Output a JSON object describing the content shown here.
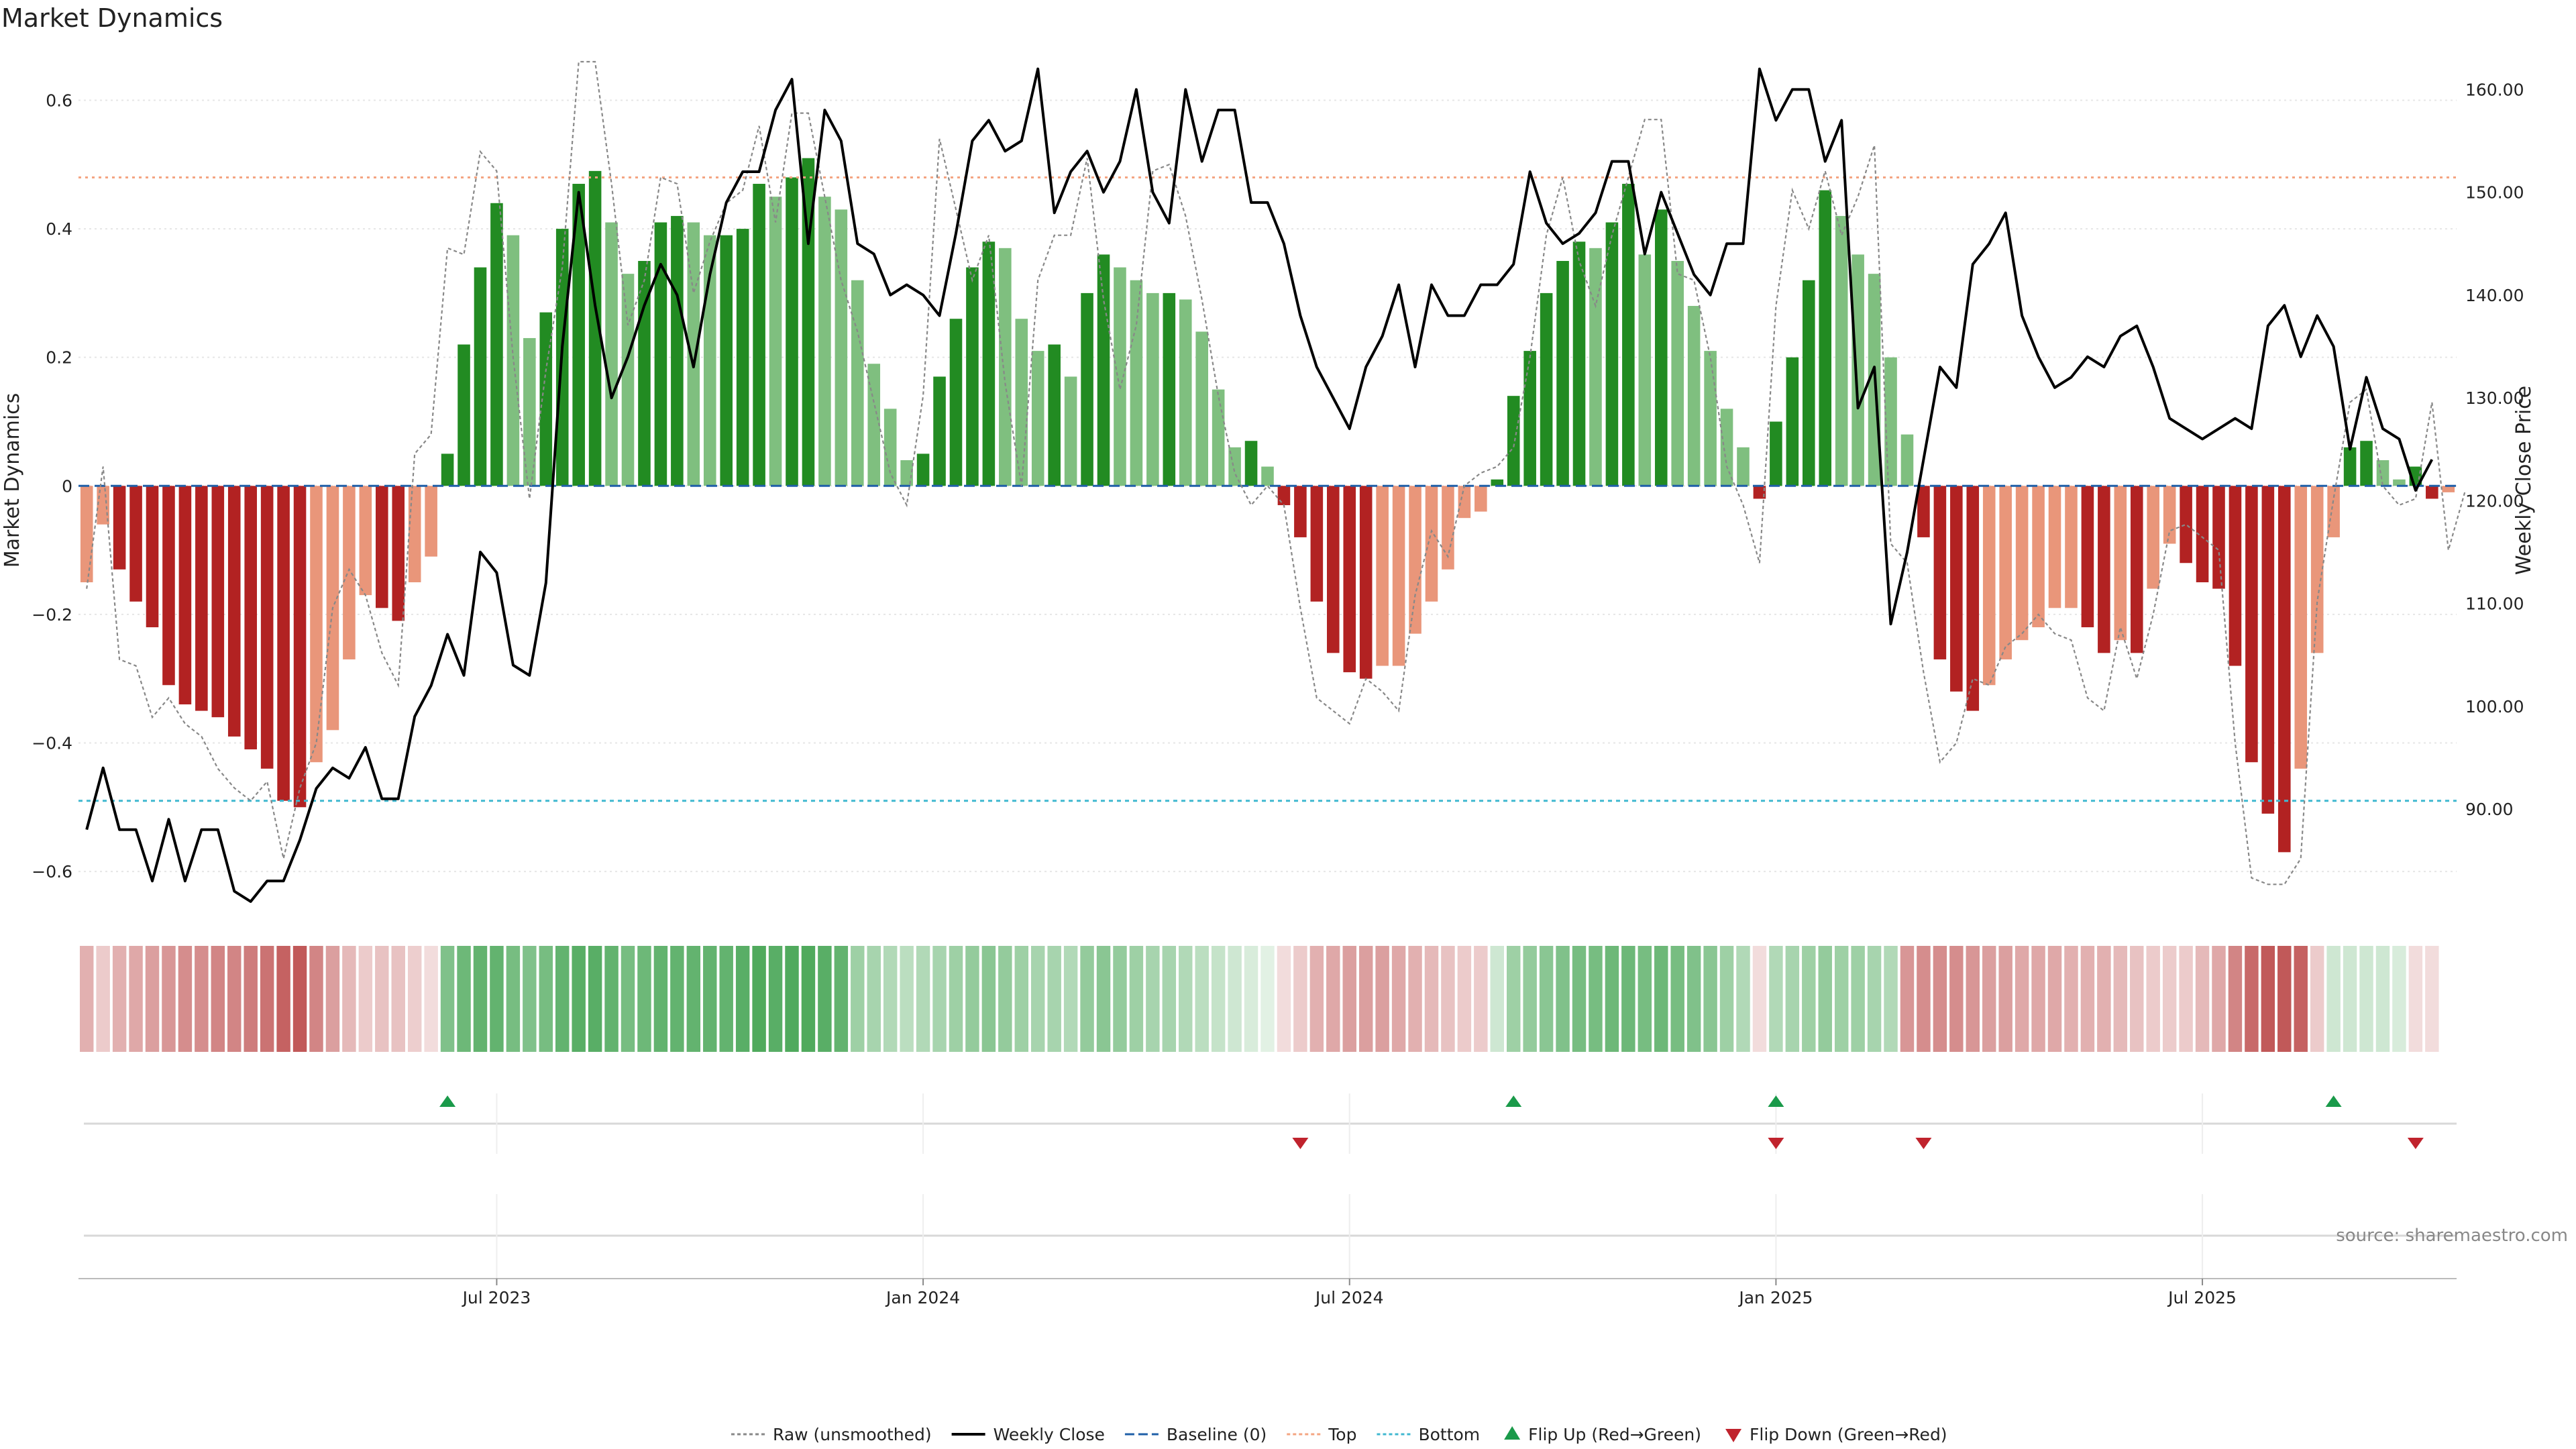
{
  "chart_data": {
    "type": "bar",
    "title": "Market Dynamics",
    "source": "source: sharemaestro.com",
    "y_left": {
      "label": "Market Dynamics",
      "range": [
        -0.65,
        0.66
      ],
      "ticks": [
        0.6,
        0.4,
        0.2,
        0,
        -0.2,
        -0.4,
        -0.6
      ],
      "tick_labels": [
        "0.6",
        "0.4",
        "0.2",
        "0",
        "−0.2",
        "−0.4",
        "−0.6"
      ]
    },
    "y_right": {
      "label": "Weekly Close Price",
      "range": [
        80.8,
        162.7
      ],
      "ticks": [
        160,
        150,
        140,
        130,
        120,
        110,
        100,
        90
      ],
      "tick_labels": [
        "160.00",
        "150.00",
        "140.00",
        "130.00",
        "120.00",
        "110.00",
        "100.00",
        "90.00"
      ]
    },
    "x_ticks": [
      {
        "label": "Jul 2023",
        "week": 25.5
      },
      {
        "label": "Jan 2024",
        "week": 51.5
      },
      {
        "label": "Jul 2024",
        "week": 77.5
      },
      {
        "label": "Jan 2025",
        "week": 103.5
      },
      {
        "label": "Jul 2025",
        "week": 129.5
      }
    ],
    "reference_lines": {
      "baseline": 0,
      "top": 0.48,
      "bottom": -0.49
    },
    "bar_colors": {
      "strong_green": "#228B22",
      "light_green": "#7FBF7F",
      "strong_red": "#B22222",
      "light_red": "#E9967A"
    },
    "line_colors": {
      "raw": "#888888",
      "close": "#000000",
      "baseline": "#1f5fa8",
      "top": "#f4a582",
      "bottom": "#40b8d0"
    },
    "smoothed": [
      -0.15,
      -0.06,
      -0.13,
      -0.18,
      -0.22,
      -0.31,
      -0.34,
      -0.35,
      -0.36,
      -0.39,
      -0.41,
      -0.44,
      -0.49,
      -0.5,
      -0.43,
      -0.38,
      -0.27,
      -0.17,
      -0.19,
      -0.21,
      -0.15,
      -0.11,
      0.05,
      0.22,
      0.34,
      0.44,
      0.39,
      0.23,
      0.27,
      0.4,
      0.47,
      0.49,
      0.41,
      0.33,
      0.35,
      0.41,
      0.42,
      0.41,
      0.39,
      0.39,
      0.4,
      0.47,
      0.45,
      0.48,
      0.51,
      0.45,
      0.43,
      0.32,
      0.19,
      0.12,
      0.04,
      0.05,
      0.17,
      0.26,
      0.34,
      0.38,
      0.37,
      0.26,
      0.21,
      0.22,
      0.17,
      0.3,
      0.36,
      0.34,
      0.32,
      0.3,
      0.3,
      0.29,
      0.24,
      0.15,
      0.06,
      0.07,
      0.03,
      -0.03,
      -0.08,
      -0.18,
      -0.26,
      -0.29,
      -0.3,
      -0.28,
      -0.28,
      -0.23,
      -0.18,
      -0.13,
      -0.05,
      -0.04,
      0.01,
      0.14,
      0.21,
      0.3,
      0.35,
      0.38,
      0.37,
      0.41,
      0.47,
      0.36,
      0.43,
      0.35,
      0.28,
      0.21,
      0.12,
      0.06,
      -0.02,
      0.1,
      0.2,
      0.32,
      0.46,
      0.42,
      0.36,
      0.33,
      0.2,
      0.08,
      -0.08,
      -0.27,
      -0.32,
      -0.35,
      -0.31,
      -0.27,
      -0.24,
      -0.22,
      -0.19,
      -0.19,
      -0.22,
      -0.26,
      -0.24,
      -0.26,
      -0.16,
      -0.09,
      -0.12,
      -0.15,
      -0.16,
      -0.28,
      -0.43,
      -0.51,
      -0.57,
      -0.44,
      -0.26,
      -0.08,
      0.06,
      0.07,
      0.04,
      0.01,
      0.03,
      -0.02,
      -0.01
    ],
    "raw": [
      -0.16,
      0.03,
      -0.27,
      -0.28,
      -0.36,
      -0.33,
      -0.37,
      -0.39,
      -0.44,
      -0.47,
      -0.49,
      -0.46,
      -0.58,
      -0.47,
      -0.4,
      -0.19,
      -0.13,
      -0.17,
      -0.26,
      -0.31,
      0.05,
      0.08,
      0.37,
      0.36,
      0.52,
      0.49,
      0.2,
      -0.02,
      0.18,
      0.34,
      0.66,
      0.66,
      0.47,
      0.25,
      0.32,
      0.48,
      0.47,
      0.3,
      0.38,
      0.44,
      0.46,
      0.56,
      0.41,
      0.58,
      0.58,
      0.45,
      0.32,
      0.24,
      0.13,
      0.02,
      -0.03,
      0.14,
      0.54,
      0.43,
      0.32,
      0.39,
      0.16,
      0.0,
      0.32,
      0.39,
      0.39,
      0.51,
      0.29,
      0.15,
      0.25,
      0.49,
      0.5,
      0.42,
      0.29,
      0.14,
      0.02,
      -0.03,
      0.0,
      -0.03,
      -0.19,
      -0.33,
      -0.35,
      -0.37,
      -0.3,
      -0.32,
      -0.35,
      -0.17,
      -0.07,
      -0.11,
      -0.0,
      0.02,
      0.03,
      0.06,
      0.2,
      0.39,
      0.48,
      0.35,
      0.28,
      0.39,
      0.48,
      0.57,
      0.57,
      0.33,
      0.32,
      0.2,
      0.03,
      -0.03,
      -0.12,
      0.28,
      0.46,
      0.4,
      0.49,
      0.39,
      0.45,
      0.53,
      -0.09,
      -0.12,
      -0.29,
      -0.43,
      -0.4,
      -0.3,
      -0.31,
      -0.25,
      -0.23,
      -0.2,
      -0.23,
      -0.24,
      -0.33,
      -0.35,
      -0.22,
      -0.3,
      -0.2,
      -0.07,
      -0.06,
      -0.08,
      -0.1,
      -0.4,
      -0.61,
      -0.62,
      -0.62,
      -0.58,
      -0.18,
      -0.02,
      0.13,
      0.15,
      0.0,
      -0.03,
      -0.02,
      0.13,
      -0.1,
      -0.01
    ],
    "close": [
      88,
      94,
      88,
      88,
      83,
      89,
      83,
      88,
      88,
      82,
      81,
      83,
      83,
      87,
      92,
      94,
      93,
      96,
      91,
      91,
      99,
      102,
      107,
      103,
      115,
      113,
      104,
      103,
      112,
      135,
      150,
      139,
      130,
      134,
      139,
      143,
      140,
      133,
      142,
      149,
      152,
      152,
      158,
      161,
      145,
      158,
      155,
      145,
      144,
      140,
      141,
      140,
      138,
      146,
      155,
      157,
      154,
      155,
      162,
      148,
      152,
      154,
      150,
      153,
      160,
      150,
      147,
      160,
      153,
      158,
      158,
      149,
      149,
      145,
      138,
      133,
      130,
      127,
      133,
      136,
      141,
      133,
      141,
      138,
      138,
      141,
      141,
      143,
      152,
      147,
      145,
      146,
      148,
      153,
      153,
      144,
      150,
      146,
      142,
      140,
      145,
      145,
      162,
      157,
      160,
      160,
      153,
      157,
      129,
      133,
      108,
      115,
      124,
      133,
      131,
      143,
      145,
      148,
      138,
      134,
      131,
      132,
      134,
      133,
      136,
      137,
      133,
      128,
      127,
      126,
      127,
      128,
      127,
      137,
      139,
      134,
      138,
      135,
      125,
      132,
      127,
      126,
      121,
      124
    ],
    "heat_strip": [
      -0.45,
      -0.3,
      -0.45,
      -0.5,
      -0.55,
      -0.6,
      -0.65,
      -0.65,
      -0.7,
      -0.7,
      -0.75,
      -0.8,
      -0.9,
      -0.95,
      -0.7,
      -0.55,
      -0.4,
      -0.3,
      -0.35,
      -0.35,
      -0.28,
      -0.2,
      0.65,
      0.75,
      0.8,
      0.8,
      0.7,
      0.65,
      0.7,
      0.8,
      0.85,
      0.85,
      0.8,
      0.7,
      0.75,
      0.8,
      0.8,
      0.8,
      0.8,
      0.8,
      0.85,
      0.9,
      0.85,
      0.9,
      0.9,
      0.85,
      0.8,
      0.5,
      0.45,
      0.4,
      0.35,
      0.4,
      0.45,
      0.5,
      0.55,
      0.6,
      0.55,
      0.5,
      0.45,
      0.45,
      0.4,
      0.55,
      0.6,
      0.55,
      0.5,
      0.45,
      0.45,
      0.4,
      0.35,
      0.3,
      0.25,
      0.2,
      0.15,
      -0.2,
      -0.3,
      -0.45,
      -0.5,
      -0.55,
      -0.55,
      -0.55,
      -0.5,
      -0.45,
      -0.4,
      -0.35,
      -0.3,
      -0.3,
      0.25,
      0.5,
      0.55,
      0.6,
      0.65,
      0.7,
      0.7,
      0.75,
      0.75,
      0.7,
      0.75,
      0.7,
      0.65,
      0.6,
      0.5,
      0.4,
      -0.2,
      0.4,
      0.45,
      0.5,
      0.55,
      0.5,
      0.5,
      0.45,
      0.4,
      -0.6,
      -0.65,
      -0.65,
      -0.65,
      -0.6,
      -0.55,
      -0.55,
      -0.5,
      -0.5,
      -0.5,
      -0.45,
      -0.45,
      -0.45,
      -0.4,
      -0.35,
      -0.3,
      -0.3,
      -0.3,
      -0.4,
      -0.5,
      -0.7,
      -0.85,
      -0.95,
      -0.95,
      -0.9,
      -0.3,
      0.25,
      0.25,
      0.25,
      0.25,
      0.2,
      -0.2,
      -0.2
    ],
    "flips": [
      {
        "week": 22,
        "direction": "up"
      },
      {
        "week": 74,
        "direction": "down"
      },
      {
        "week": 87,
        "direction": "up"
      },
      {
        "week": 103,
        "direction": "down"
      },
      {
        "week": 103,
        "direction": "up"
      },
      {
        "week": 112,
        "direction": "down"
      },
      {
        "week": 137,
        "direction": "up"
      },
      {
        "week": 142,
        "direction": "down"
      }
    ],
    "flip_colors": {
      "up": "#1a9a4a",
      "down": "#c0232d"
    }
  },
  "legend": [
    {
      "label": "Raw (unsmoothed)",
      "kind": "dotted-line",
      "color": "#888888"
    },
    {
      "label": "Weekly Close",
      "kind": "solid-line",
      "color": "#000000"
    },
    {
      "label": "Baseline (0)",
      "kind": "dashed-line",
      "color": "#1f5fa8"
    },
    {
      "label": "Top",
      "kind": "dotted-line",
      "color": "#f4a582"
    },
    {
      "label": "Bottom",
      "kind": "dotted-line",
      "color": "#40b8d0"
    },
    {
      "label": "Flip Up (Red→Green)",
      "kind": "triangle-up",
      "color": "#1a9a4a"
    },
    {
      "label": "Flip Down (Green→Red)",
      "kind": "triangle-down",
      "color": "#c0232d"
    }
  ]
}
